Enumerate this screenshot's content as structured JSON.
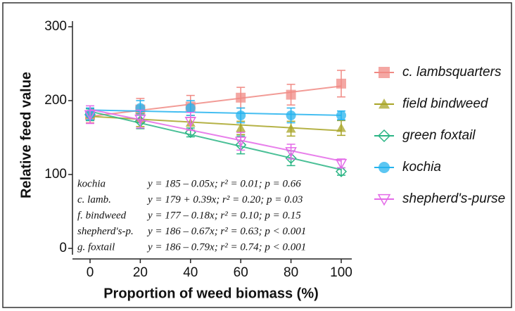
{
  "chart_data": {
    "type": "scatter",
    "x_label": "Proportion of weed biomass (%)",
    "y_label": "Relative feed value",
    "x": [
      0,
      20,
      40,
      60,
      80,
      100
    ],
    "xlim": [
      0,
      100
    ],
    "xticks": [
      0,
      20,
      40,
      60,
      80,
      100
    ],
    "ylim": [
      0,
      300
    ],
    "yticks": [
      0,
      100,
      200,
      300
    ],
    "legend": "right",
    "series": [
      {
        "name": "c. lambsquarters",
        "color": "#f08a84",
        "marker": "square",
        "values": [
          180,
          188,
          192,
          204,
          208,
          223
        ],
        "errors": [
          10,
          15,
          15,
          14,
          14,
          18
        ]
      },
      {
        "name": "field bindweed",
        "color": "#a8a426",
        "marker": "triangle",
        "values": [
          181,
          175,
          170,
          163,
          162,
          163
        ],
        "errors": [
          8,
          10,
          10,
          9,
          10,
          10
        ]
      },
      {
        "name": "green foxtail",
        "color": "#2bb585",
        "marker": "diamond-open",
        "values": [
          181,
          172,
          157,
          140,
          122,
          104
        ],
        "errors": [
          8,
          10,
          6,
          12,
          10,
          5
        ]
      },
      {
        "name": "kochia",
        "color": "#25b3ee",
        "marker": "circle",
        "values": [
          182,
          190,
          190,
          180,
          180,
          180
        ],
        "errors": [
          8,
          10,
          10,
          10,
          10,
          6
        ]
      },
      {
        "name": "shepherd's-purse",
        "color": "#e46ae8",
        "marker": "triangle-down-open",
        "values": [
          181,
          175,
          172,
          145,
          131,
          115
        ],
        "errors": [
          12,
          12,
          12,
          12,
          10,
          6
        ]
      }
    ],
    "annotations": [
      {
        "label": "kochia",
        "text": "y = 185 – 0.05x; r² = 0.01; p = 0.66"
      },
      {
        "label": "c. lamb.",
        "text": "y = 179 + 0.39x; r² = 0.20; p = 0.03"
      },
      {
        "label": "f. bindweed",
        "text": "y = 177 – 0.18x; r² = 0.10; p = 0.15"
      },
      {
        "label": "shepherd's-p.",
        "text": "y = 186 – 0.67x; r² = 0.63; p < 0.001"
      },
      {
        "label": "g. foxtail",
        "text": "y = 186 – 0.79x; r² = 0.74; p < 0.001"
      }
    ]
  }
}
